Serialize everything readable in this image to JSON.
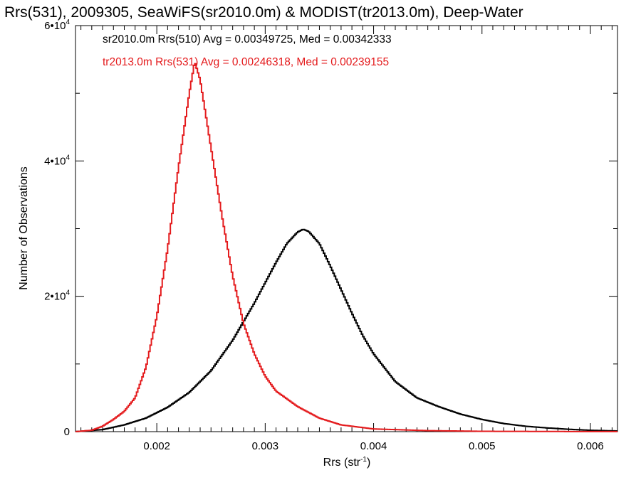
{
  "chart_data": {
    "type": "line",
    "title": "Rrs(531), 2009305, SeaWiFS(sr2010.0m) & MODIST(tr2013.0m), Deep-Water",
    "xlabel": "Rrs (str",
    "xlabel_sup": "-1",
    "xlabel_end": ")",
    "ylabel": "Number of Observations",
    "xlim": [
      0.00125,
      0.00625
    ],
    "ylim": [
      0,
      60000
    ],
    "x_ticks": [
      {
        "value": 0.002,
        "label": "0.002"
      },
      {
        "value": 0.003,
        "label": "0.003"
      },
      {
        "value": 0.004,
        "label": "0.004"
      },
      {
        "value": 0.005,
        "label": "0.005"
      },
      {
        "value": 0.006,
        "label": "0.006"
      }
    ],
    "y_ticks": [
      {
        "value": 0,
        "label": "0",
        "sup": ""
      },
      {
        "value": 20000,
        "label": "2•10",
        "sup": "4"
      },
      {
        "value": 40000,
        "label": "4•10",
        "sup": "4"
      },
      {
        "value": 60000,
        "label": "6•10",
        "sup": "4"
      }
    ],
    "legend": [
      {
        "text": "sr2010.0m Rrs(510) Avg = 0.00349725, Med = 0.00342333",
        "color": "#000000"
      },
      {
        "text": "tr2013.0m Rrs(531) Avg = 0.00246318, Med = 0.00239155",
        "color": "#e41a1c"
      }
    ],
    "series": [
      {
        "color": "#000000",
        "points": [
          [
            0.00125,
            0
          ],
          [
            0.0015,
            300
          ],
          [
            0.0017,
            1000
          ],
          [
            0.0019,
            2000
          ],
          [
            0.0021,
            3600
          ],
          [
            0.0023,
            5800
          ],
          [
            0.0025,
            9000
          ],
          [
            0.0027,
            13500
          ],
          [
            0.0029,
            19000
          ],
          [
            0.0031,
            25000
          ],
          [
            0.0032,
            27800
          ],
          [
            0.0033,
            29500
          ],
          [
            0.00335,
            29900
          ],
          [
            0.0034,
            29600
          ],
          [
            0.0035,
            27800
          ],
          [
            0.0036,
            24500
          ],
          [
            0.0037,
            21000
          ],
          [
            0.0038,
            17500
          ],
          [
            0.0039,
            14200
          ],
          [
            0.004,
            11500
          ],
          [
            0.0042,
            7400
          ],
          [
            0.0044,
            5000
          ],
          [
            0.0046,
            3700
          ],
          [
            0.0048,
            2600
          ],
          [
            0.005,
            1800
          ],
          [
            0.0052,
            1200
          ],
          [
            0.0054,
            800
          ],
          [
            0.0056,
            550
          ],
          [
            0.0058,
            350
          ],
          [
            0.006,
            200
          ],
          [
            0.00625,
            100
          ]
        ]
      },
      {
        "color": "#e41a1c",
        "points": [
          [
            0.00125,
            0
          ],
          [
            0.0014,
            200
          ],
          [
            0.0015,
            800
          ],
          [
            0.0016,
            1800
          ],
          [
            0.0017,
            3000
          ],
          [
            0.0018,
            5000
          ],
          [
            0.0019,
            9500
          ],
          [
            0.002,
            17000
          ],
          [
            0.0021,
            27000
          ],
          [
            0.0022,
            39000
          ],
          [
            0.0023,
            50000
          ],
          [
            0.00235,
            54700
          ],
          [
            0.0024,
            52000
          ],
          [
            0.0025,
            42000
          ],
          [
            0.0026,
            32000
          ],
          [
            0.0027,
            23000
          ],
          [
            0.0028,
            16000
          ],
          [
            0.0029,
            11500
          ],
          [
            0.003,
            8200
          ],
          [
            0.0031,
            6000
          ],
          [
            0.0033,
            3700
          ],
          [
            0.0035,
            2000
          ],
          [
            0.0037,
            1000
          ],
          [
            0.004,
            400
          ],
          [
            0.0045,
            150
          ],
          [
            0.005,
            50
          ],
          [
            0.006,
            10
          ]
        ]
      }
    ]
  }
}
